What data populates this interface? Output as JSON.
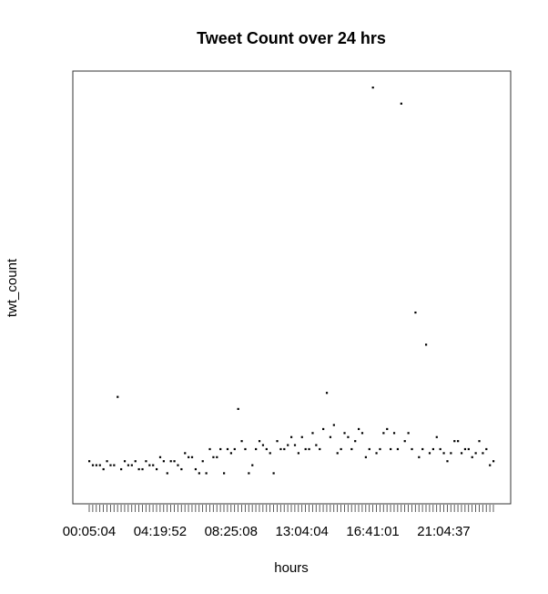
{
  "chart_data": {
    "type": "scatter",
    "title": "Tweet Count over 24 hrs",
    "xlabel": "hours",
    "ylabel": "twt_count",
    "x_tick_labels": [
      "00:05:04",
      "04:19:52",
      "08:25:08",
      "13:04:04",
      "16:41:01",
      "21:04:37"
    ],
    "x_tick_label_indices": [
      0,
      20,
      40,
      60,
      80,
      100
    ],
    "n_points": 115,
    "ylim": [
      0,
      1
    ],
    "y_ticks_shown": false,
    "grid": false,
    "legend": "none",
    "point_color": "#000000",
    "values": [
      0.07,
      0.06,
      0.06,
      0.06,
      0.05,
      0.07,
      0.06,
      0.06,
      0.23,
      0.05,
      0.07,
      0.06,
      0.06,
      0.07,
      0.05,
      0.05,
      0.07,
      0.06,
      0.06,
      0.05,
      0.08,
      0.07,
      0.04,
      0.07,
      0.07,
      0.06,
      0.05,
      0.09,
      0.08,
      0.08,
      0.05,
      0.04,
      0.07,
      0.04,
      0.1,
      0.08,
      0.08,
      0.1,
      0.04,
      0.1,
      0.09,
      0.1,
      0.2,
      0.12,
      0.1,
      0.04,
      0.06,
      0.1,
      0.12,
      0.11,
      0.1,
      0.09,
      0.04,
      0.12,
      0.1,
      0.1,
      0.11,
      0.13,
      0.11,
      0.09,
      0.13,
      0.1,
      0.1,
      0.14,
      0.11,
      0.1,
      0.15,
      0.24,
      0.13,
      0.16,
      0.09,
      0.1,
      0.14,
      0.13,
      0.1,
      0.12,
      0.15,
      0.14,
      0.08,
      0.1,
      1.0,
      0.09,
      0.1,
      0.14,
      0.15,
      0.1,
      0.14,
      0.1,
      0.96,
      0.12,
      0.14,
      0.1,
      0.44,
      0.08,
      0.1,
      0.36,
      0.09,
      0.1,
      0.13,
      0.1,
      0.09,
      0.07,
      0.09,
      0.12,
      0.12,
      0.09,
      0.1,
      0.1,
      0.08,
      0.09,
      0.12,
      0.09,
      0.1,
      0.06,
      0.07
    ]
  }
}
